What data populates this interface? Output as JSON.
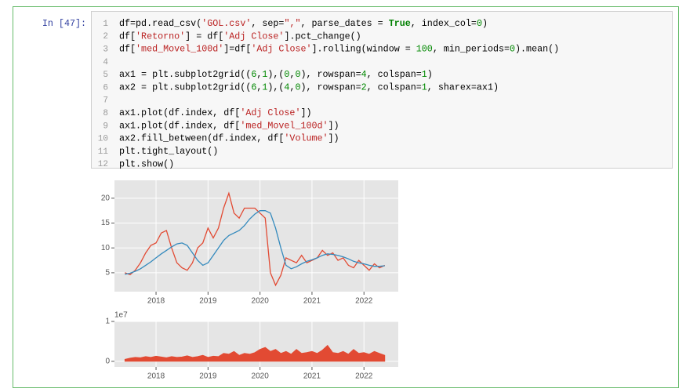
{
  "cell": {
    "prompt": "In [47]:",
    "lines": [
      {
        "number": 1,
        "code": "df=pd.read_csv('GOL.csv', sep=\",\", parse_dates = True, index_col=0)"
      },
      {
        "number": 2,
        "code": "df['Retorno'] = df['Adj Close'].pct_change()"
      },
      {
        "number": 3,
        "code": "df['med_Movel_100d']=df['Adj Close'].rolling(window = 100, min_periods=0).mean()"
      },
      {
        "number": 4
      },
      {
        "number": 5,
        "code": "ax1 = plt.subplot2grid((6,1),(0,0), rowspan=4, colspan=1)"
      },
      {
        "number": 6,
        "code": "ax2 = plt.subplot2grid((6,1),(4,0), rowspan=2, colspan=1, sharex=ax1)"
      },
      {
        "number": 7
      },
      {
        "number": 8,
        "code": "ax1.plot(df.index, df['Adj Close'])"
      },
      {
        "number": 9,
        "code": "ax1.plot(df.index, df['med_Movel_100d'])"
      },
      {
        "number": 10,
        "code": "ax2.fill_between(df.index, df['Volume'])"
      },
      {
        "number": 11,
        "code": "plt.tight_layout()"
      },
      {
        "number": 12,
        "code": "plt.show()"
      }
    ]
  },
  "chart_data": [
    {
      "type": "line",
      "x": [
        2017.4,
        2017.5,
        2017.6,
        2017.7,
        2017.8,
        2017.9,
        2018.0,
        2018.1,
        2018.2,
        2018.3,
        2018.4,
        2018.5,
        2018.6,
        2018.7,
        2018.8,
        2018.9,
        2019.0,
        2019.1,
        2019.2,
        2019.3,
        2019.4,
        2019.5,
        2019.6,
        2019.7,
        2019.8,
        2019.9,
        2020.0,
        2020.1,
        2020.2,
        2020.3,
        2020.4,
        2020.5,
        2020.6,
        2020.7,
        2020.8,
        2020.9,
        2021.0,
        2021.1,
        2021.2,
        2021.3,
        2021.4,
        2021.5,
        2021.6,
        2021.7,
        2021.8,
        2021.9,
        2022.0,
        2022.1,
        2022.2,
        2022.3,
        2022.4
      ],
      "series": [
        {
          "color": "#e24a33",
          "values": [
            5,
            4.6,
            5.5,
            7,
            9,
            10.5,
            11,
            13,
            13.5,
            10,
            7,
            6,
            5.5,
            7,
            10,
            11,
            14,
            12,
            14,
            18,
            21,
            17,
            16,
            18,
            18,
            18,
            17,
            16,
            5,
            2.5,
            4.5,
            8,
            7.5,
            7,
            8.5,
            7,
            7.5,
            8,
            9.5,
            8.5,
            9,
            7.5,
            8,
            6.5,
            6,
            7.5,
            6.5,
            5.5,
            6.8,
            6,
            6.5
          ]
        },
        {
          "color": "#348abd",
          "values": [
            4.7,
            4.9,
            5.3,
            5.8,
            6.5,
            7.2,
            8,
            8.8,
            9.5,
            10.2,
            10.8,
            11,
            10.5,
            9,
            7.5,
            6.5,
            7,
            8.5,
            10,
            11.5,
            12.5,
            13,
            13.5,
            14.5,
            15.8,
            16.8,
            17.5,
            17.5,
            17,
            14,
            10,
            6.5,
            5.8,
            6.2,
            6.8,
            7.3,
            7.6,
            8,
            8.5,
            8.8,
            8.7,
            8.5,
            8.2,
            7.8,
            7.3,
            7,
            6.8,
            6.5,
            6.3,
            6.3,
            6.4
          ]
        }
      ],
      "xlim": [
        2017.2,
        2022.66
      ],
      "xticks": [
        2018,
        2019,
        2020,
        2021,
        2022
      ],
      "ylim": [
        1.2,
        23.6
      ],
      "yticks": [
        5,
        10,
        15,
        20
      ],
      "grid": true
    },
    {
      "type": "area",
      "x": [
        2017.4,
        2017.5,
        2017.6,
        2017.7,
        2017.8,
        2017.9,
        2018.0,
        2018.1,
        2018.2,
        2018.3,
        2018.4,
        2018.5,
        2018.6,
        2018.7,
        2018.8,
        2018.9,
        2019.0,
        2019.1,
        2019.2,
        2019.3,
        2019.4,
        2019.5,
        2019.6,
        2019.7,
        2019.8,
        2019.9,
        2020.0,
        2020.1,
        2020.2,
        2020.3,
        2020.4,
        2020.5,
        2020.6,
        2020.7,
        2020.8,
        2020.9,
        2021.0,
        2021.1,
        2021.2,
        2021.3,
        2021.4,
        2021.5,
        2021.6,
        2021.7,
        2021.8,
        2021.9,
        2022.0,
        2022.1,
        2022.2,
        2022.3,
        2022.4
      ],
      "series": [
        {
          "color": "#e24a33",
          "values": [
            0.05,
            0.08,
            0.1,
            0.09,
            0.12,
            0.1,
            0.13,
            0.11,
            0.09,
            0.12,
            0.1,
            0.11,
            0.14,
            0.1,
            0.12,
            0.15,
            0.1,
            0.13,
            0.12,
            0.2,
            0.18,
            0.25,
            0.15,
            0.2,
            0.18,
            0.22,
            0.3,
            0.35,
            0.25,
            0.3,
            0.2,
            0.25,
            0.18,
            0.3,
            0.2,
            0.22,
            0.25,
            0.2,
            0.28,
            0.4,
            0.22,
            0.2,
            0.25,
            0.18,
            0.3,
            0.2,
            0.22,
            0.18,
            0.25,
            0.2,
            0.15
          ]
        }
      ],
      "xlim": [
        2017.2,
        2022.66
      ],
      "xticks": [
        2018,
        2019,
        2020,
        2021,
        2022
      ],
      "ylim": [
        -0.14,
        1
      ],
      "yticks": [
        0,
        1
      ],
      "offset_label": "1e7",
      "grid": true
    }
  ]
}
